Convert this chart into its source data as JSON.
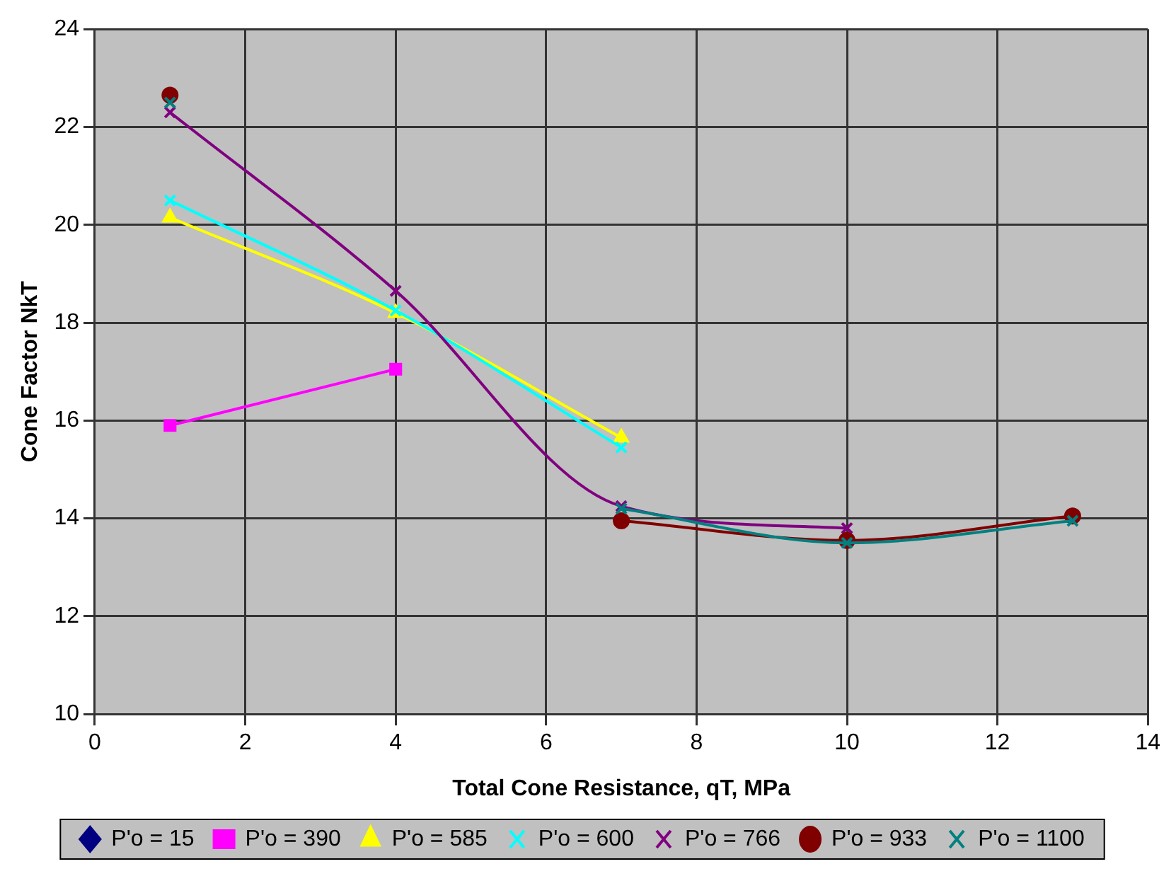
{
  "chart_data": {
    "type": "line",
    "xlabel": "Total Cone Resistance, qT, MPa",
    "ylabel": "Cone Factor NkT",
    "x": [
      1,
      4,
      7,
      10,
      13
    ],
    "xlim": [
      0,
      14
    ],
    "xticks": [
      0,
      2,
      4,
      6,
      8,
      10,
      12,
      14
    ],
    "ylim": [
      10,
      24
    ],
    "yticks": [
      10,
      12,
      14,
      16,
      18,
      20,
      22,
      24
    ],
    "grid": true,
    "legend": "bottom",
    "series": [
      {
        "name": "P'o = 15",
        "color": "#000080",
        "marker": "diamond",
        "values": [
          null,
          null,
          null,
          null,
          null
        ]
      },
      {
        "name": "P'o = 390",
        "color": "#ff00ff",
        "marker": "square",
        "values": [
          15.9,
          17.05,
          null,
          null,
          null
        ]
      },
      {
        "name": "P'o = 585",
        "color": "#ffff00",
        "marker": "triangle",
        "values": [
          20.15,
          18.2,
          15.65,
          null,
          null
        ]
      },
      {
        "name": "P'o = 600",
        "color": "#00ffff",
        "marker": "cross",
        "values": [
          20.5,
          18.25,
          15.45,
          null,
          null
        ]
      },
      {
        "name": "P'o = 766",
        "color": "#800080",
        "marker": "cross",
        "values": [
          22.3,
          18.65,
          14.25,
          13.8,
          null
        ]
      },
      {
        "name": "P'o = 933",
        "color": "#800000",
        "marker": "circle",
        "values": [
          22.65,
          null,
          13.95,
          13.55,
          14.05
        ]
      },
      {
        "name": "P'o = 1100",
        "color": "#008080",
        "marker": "cross",
        "values": [
          22.5,
          null,
          14.2,
          13.5,
          13.95
        ]
      }
    ]
  }
}
